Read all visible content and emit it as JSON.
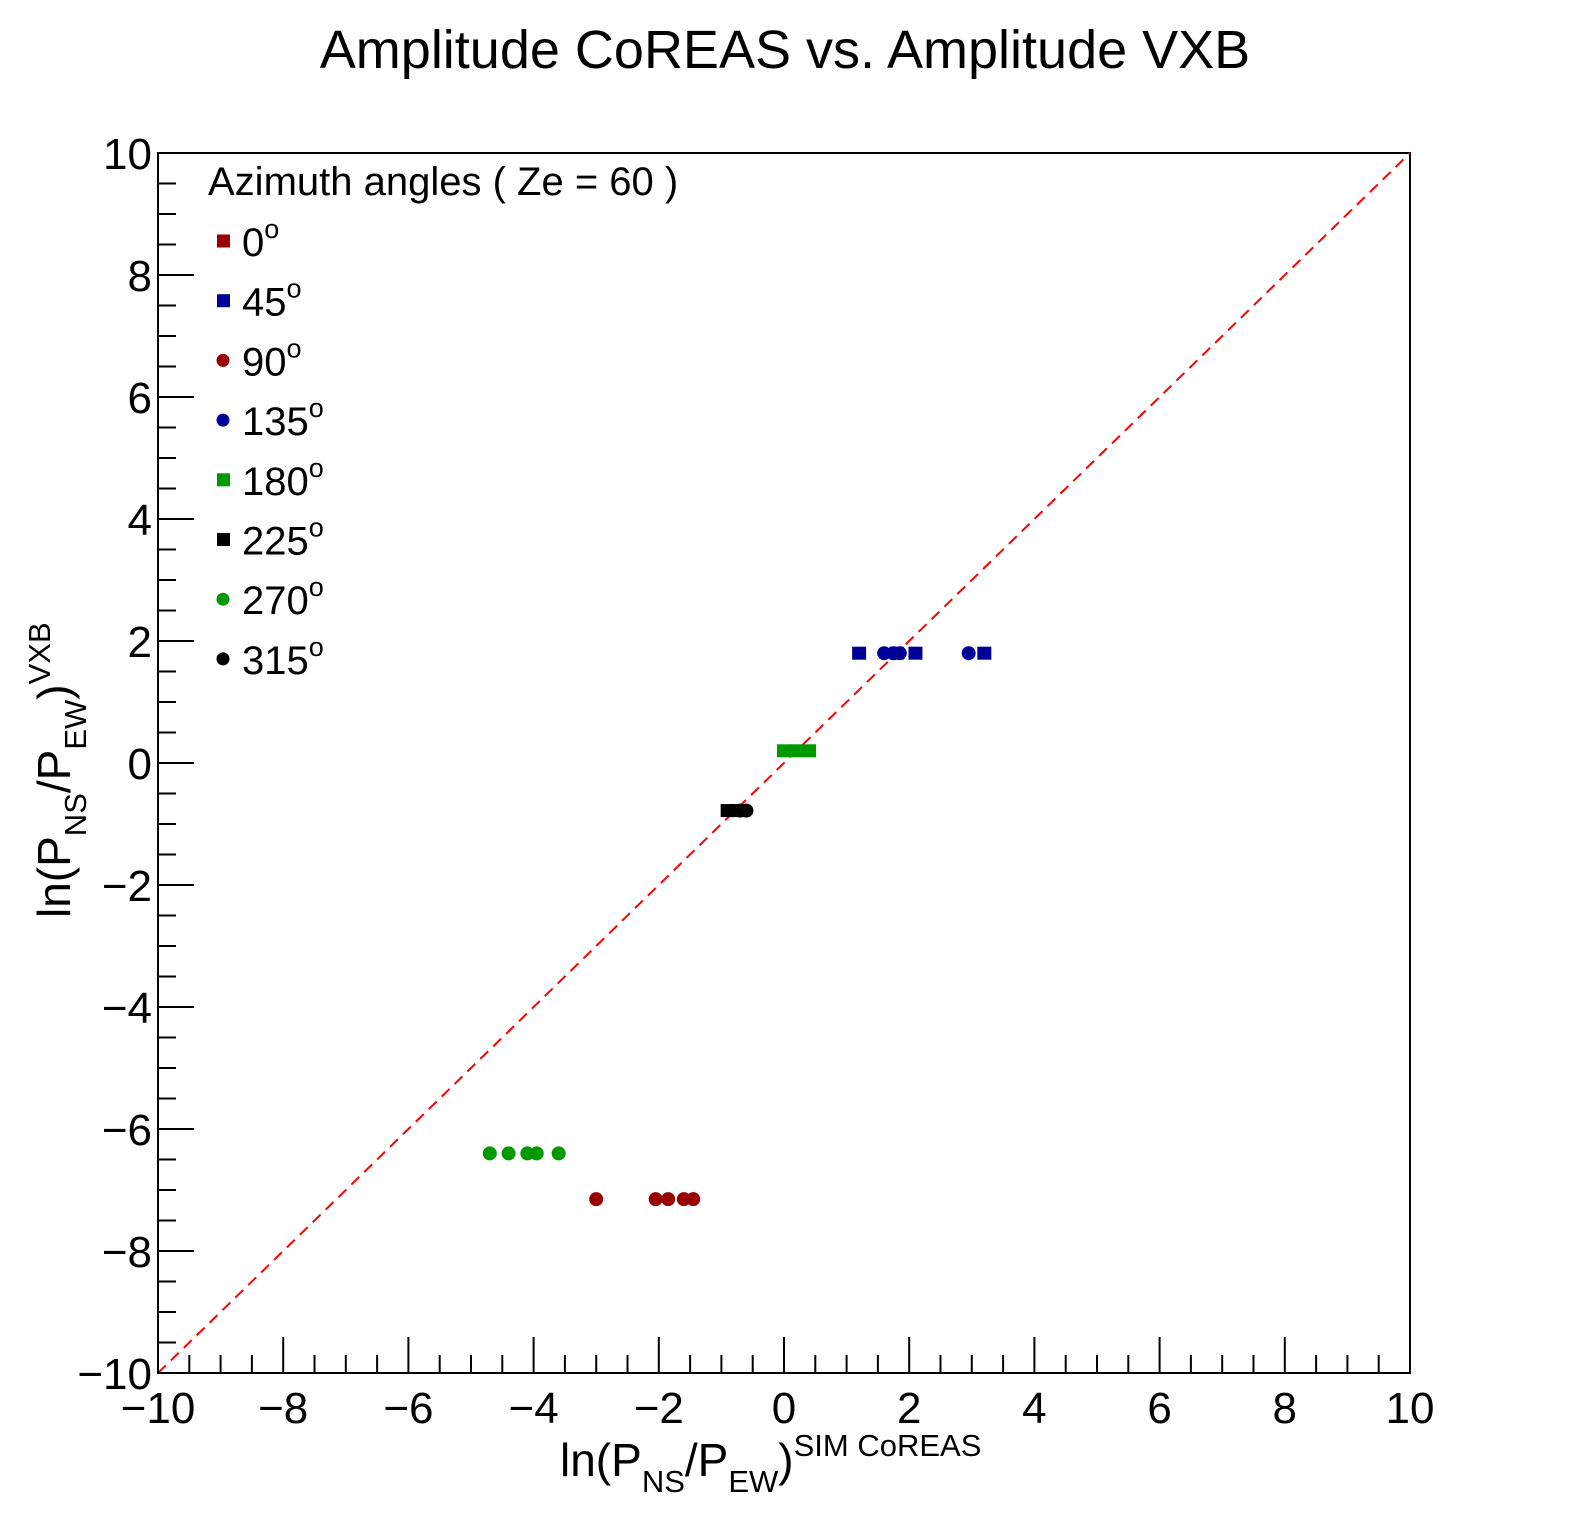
{
  "chart_data": {
    "type": "scatter",
    "title": "Amplitude CoREAS vs. Amplitude VXB",
    "xlabel": {
      "base": "ln(P",
      "sub1": "NS",
      "mid": "/P",
      "sub2": "EW",
      "close": ")",
      "sup": "SIM CoREAS"
    },
    "ylabel": {
      "base": "ln(P",
      "sub1": "NS",
      "mid": "/P",
      "sub2": "EW",
      "close": ")",
      "sup": "VXB"
    },
    "xlim": [
      -10,
      10
    ],
    "ylim": [
      -10,
      10
    ],
    "x_ticks": [
      "−10",
      "−8",
      "−6",
      "−4",
      "−2",
      "0",
      "2",
      "4",
      "6",
      "8",
      "10"
    ],
    "y_ticks": [
      "−10",
      "−8",
      "−6",
      "−4",
      "−2",
      "0",
      "2",
      "4",
      "6",
      "8",
      "10"
    ],
    "legend_title": "Azimuth angles ( Ze = 60 )",
    "legend_position": "top-left",
    "reference_line": {
      "style": "dashed",
      "color": "#ff0000",
      "from": [
        -10,
        -10
      ],
      "to": [
        10,
        10
      ]
    },
    "series": [
      {
        "name": "0",
        "marker": "square",
        "color": "#990000",
        "points": []
      },
      {
        "name": "45",
        "marker": "square",
        "color": "#000099",
        "points": [
          [
            1.2,
            1.8
          ],
          [
            1.8,
            1.8
          ],
          [
            2.1,
            1.8
          ],
          [
            3.2,
            1.8
          ]
        ]
      },
      {
        "name": "90",
        "marker": "circle",
        "color": "#990000",
        "points": [
          [
            -3.0,
            -7.15
          ],
          [
            -2.05,
            -7.15
          ],
          [
            -1.85,
            -7.15
          ],
          [
            -1.6,
            -7.15
          ],
          [
            -1.45,
            -7.15
          ]
        ]
      },
      {
        "name": "135",
        "marker": "circle",
        "color": "#000099",
        "points": [
          [
            1.6,
            1.8
          ],
          [
            1.75,
            1.8
          ],
          [
            1.85,
            1.8
          ],
          [
            2.95,
            1.8
          ]
        ]
      },
      {
        "name": "180",
        "marker": "square",
        "color": "#009900",
        "points": [
          [
            0.0,
            0.2
          ],
          [
            0.2,
            0.2
          ],
          [
            0.4,
            0.2
          ]
        ]
      },
      {
        "name": "225",
        "marker": "square",
        "color": "#000000",
        "points": [
          [
            -0.9,
            -0.78
          ],
          [
            -0.75,
            -0.78
          ]
        ]
      },
      {
        "name": "270",
        "marker": "circle",
        "color": "#009900",
        "points": [
          [
            -4.7,
            -6.4
          ],
          [
            -4.4,
            -6.4
          ],
          [
            -4.1,
            -6.4
          ],
          [
            -3.95,
            -6.4
          ],
          [
            -3.6,
            -6.4
          ]
        ]
      },
      {
        "name": "315",
        "marker": "circle",
        "color": "#000000",
        "points": [
          [
            -0.7,
            -0.78
          ],
          [
            -0.6,
            -0.78
          ]
        ]
      }
    ],
    "degree_symbol": "o"
  }
}
